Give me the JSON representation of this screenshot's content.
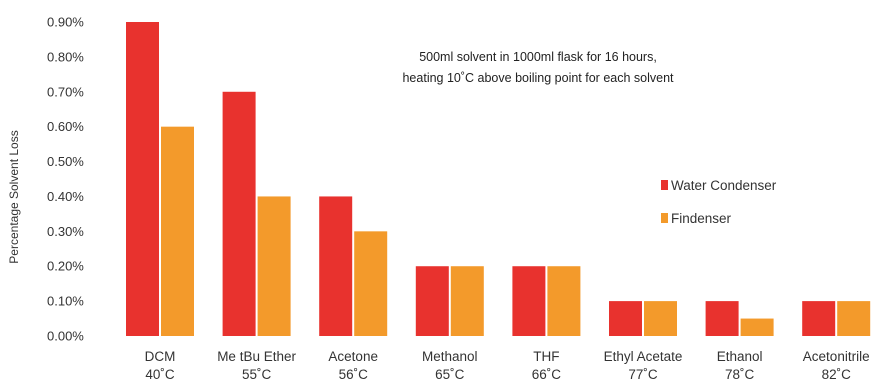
{
  "chart_data": {
    "type": "bar",
    "title": "",
    "xlabel": "",
    "ylabel": "Percentage Solvent Loss",
    "annotation": [
      "500ml solvent in 1000ml flask for 16 hours,",
      "heating 10˚C above boiling point for each solvent"
    ],
    "categories": [
      "DCM",
      "Me tBu Ether",
      "Acetone",
      "Methanol",
      "THF",
      "Ethyl Acetate",
      "Ethanol",
      "Acetonitrile"
    ],
    "category_sublabels": [
      "40˚C",
      "55˚C",
      "56˚C",
      "65˚C",
      "66˚C",
      "77˚C",
      "78˚C",
      "82˚C"
    ],
    "series": [
      {
        "name": "Water Condenser",
        "color": "#e8322e",
        "values": [
          0.9,
          0.7,
          0.4,
          0.2,
          0.2,
          0.1,
          0.1,
          0.1
        ]
      },
      {
        "name": "Findenser",
        "color": "#f39a2b",
        "values": [
          0.6,
          0.4,
          0.3,
          0.2,
          0.2,
          0.1,
          0.05,
          0.1
        ]
      }
    ],
    "ylim": [
      0,
      0.9
    ],
    "yticks": [
      "0.00%",
      "0.10%",
      "0.20%",
      "0.30%",
      "0.40%",
      "0.50%",
      "0.60%",
      "0.70%",
      "0.80%",
      "0.90%"
    ],
    "legend_position": "right",
    "grid": false
  }
}
